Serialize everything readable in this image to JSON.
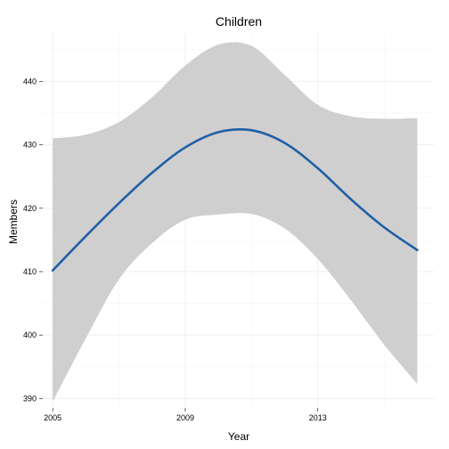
{
  "chart_data": {
    "type": "line",
    "title": "Children",
    "xlabel": "Year",
    "ylabel": "Members",
    "xlim": [
      2004.7,
      2016.5
    ],
    "ylim": [
      388.5,
      447.5
    ],
    "x_ticks": [
      2005,
      2009,
      2013
    ],
    "y_ticks": [
      390,
      400,
      410,
      420,
      430,
      440
    ],
    "grid": true,
    "legend": "none",
    "colors": {
      "line": "#1f5fa6",
      "band": "#cfcfcf"
    },
    "series": [
      {
        "type": "smooth_line",
        "x": [
          2005,
          2006,
          2007,
          2008,
          2009,
          2010,
          2011,
          2012,
          2013,
          2014,
          2015,
          2016
        ],
        "y": [
          410.2,
          415.6,
          420.8,
          425.6,
          429.6,
          432.0,
          432.3,
          430.3,
          426.3,
          421.4,
          417.0,
          413.4
        ],
        "lower": [
          389.5,
          399.5,
          408.8,
          414.5,
          418.2,
          419.0,
          419.1,
          416.8,
          412.0,
          405.5,
          398.5,
          392.3
        ],
        "upper": [
          431.0,
          431.6,
          433.6,
          437.5,
          442.5,
          445.8,
          445.6,
          441.0,
          436.3,
          434.5,
          434.1,
          434.2
        ]
      }
    ]
  }
}
